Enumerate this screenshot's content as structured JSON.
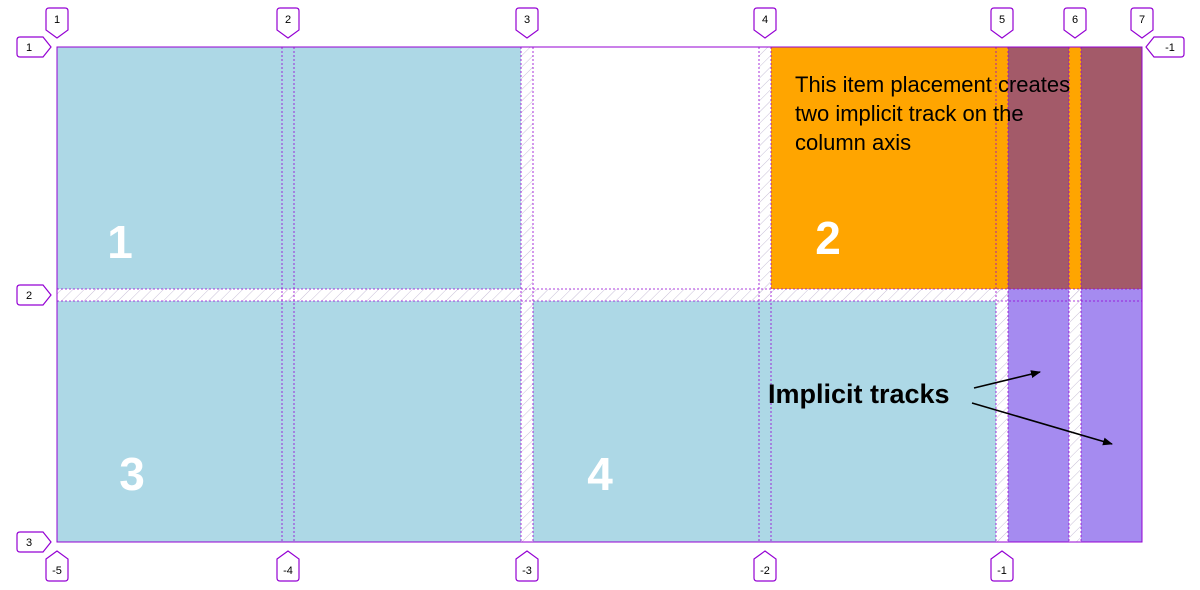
{
  "colors": {
    "explicit_item": "#add8e6",
    "placed_item": "#ffa500",
    "implicit_track": "#a58bf0",
    "implicit_overlap": "#a35a69",
    "grid_line": "#9400d3",
    "badge_border": "#9400d3",
    "item_number": "#ffffff"
  },
  "items": [
    {
      "id": "item-1",
      "label": "1"
    },
    {
      "id": "item-2",
      "label": "2"
    },
    {
      "id": "item-3",
      "label": "3"
    },
    {
      "id": "item-4",
      "label": "4"
    }
  ],
  "annotation": {
    "placement_note": [
      "This item placement creates",
      "two implicit track on the",
      "column axis"
    ],
    "implicit_label": "Implicit tracks"
  },
  "line_labels": {
    "columns_top": [
      "1",
      "2",
      "3",
      "4",
      "5",
      "6",
      "7"
    ],
    "columns_bottom": [
      "-5",
      "-4",
      "-3",
      "-2",
      "-1"
    ],
    "rows_left": [
      "1",
      "2",
      "3"
    ],
    "rows_right": [
      "-1"
    ]
  },
  "icons": {
    "badge_pointer": "pentagon-marker-icon",
    "arrow": "arrow-icon"
  }
}
